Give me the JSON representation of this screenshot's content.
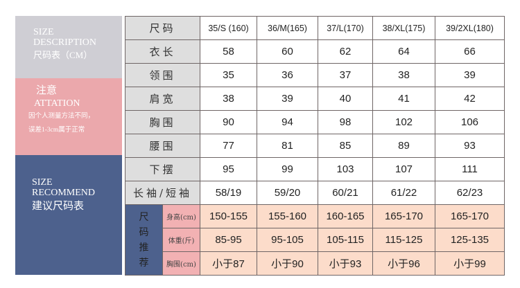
{
  "left_panels": {
    "description": {
      "line1": "SIZE",
      "line2": "DESCRIPTION",
      "line3": "尺码表（CM）"
    },
    "attention": {
      "title": "注意",
      "subtitle": "ATTATION",
      "note1": "因个人测量方法不同，",
      "note2": "误差1-3cm属于正常"
    },
    "recommend": {
      "line1": "SIZE",
      "line2": "RECOMMEND",
      "line3": "建议尺码表"
    }
  },
  "colors": {
    "gray": "#cfced4",
    "pink": "#eba8ac",
    "blue": "#4d618d",
    "peach": "#fcdcca"
  },
  "table": {
    "header_label": "尺码",
    "sizes": [
      "35/S (160)",
      "36/M(165)",
      "37/L(170)",
      "38/XL(175)",
      "39/2XL(180)"
    ],
    "rows": [
      {
        "label": "衣长",
        "values": [
          "58",
          "60",
          "62",
          "64",
          "66"
        ]
      },
      {
        "label": "领围",
        "values": [
          "35",
          "36",
          "37",
          "38",
          "39"
        ]
      },
      {
        "label": "肩宽",
        "values": [
          "38",
          "39",
          "40",
          "41",
          "42"
        ]
      },
      {
        "label": "胸围",
        "values": [
          "90",
          "94",
          "98",
          "102",
          "106"
        ]
      },
      {
        "label": "腰围",
        "values": [
          "77",
          "81",
          "85",
          "89",
          "93"
        ]
      },
      {
        "label": "下摆",
        "values": [
          "95",
          "99",
          "103",
          "107",
          "111"
        ]
      },
      {
        "label": "长袖/短袖",
        "values": [
          "58/19",
          "59/20",
          "60/21",
          "61/22",
          "62/23"
        ]
      }
    ],
    "recommend_label": "尺码推荐",
    "recommend_rows": [
      {
        "label": "身高(cm)",
        "values": [
          "150-155",
          "155-160",
          "160-165",
          "165-170",
          "165-170"
        ]
      },
      {
        "label": "体重(斤)",
        "values": [
          "85-95",
          "95-105",
          "105-115",
          "115-125",
          "125-135"
        ]
      },
      {
        "label": "胸围(cm)",
        "values": [
          "小于87",
          "小于90",
          "小于93",
          "小于96",
          "小于99"
        ]
      }
    ]
  }
}
